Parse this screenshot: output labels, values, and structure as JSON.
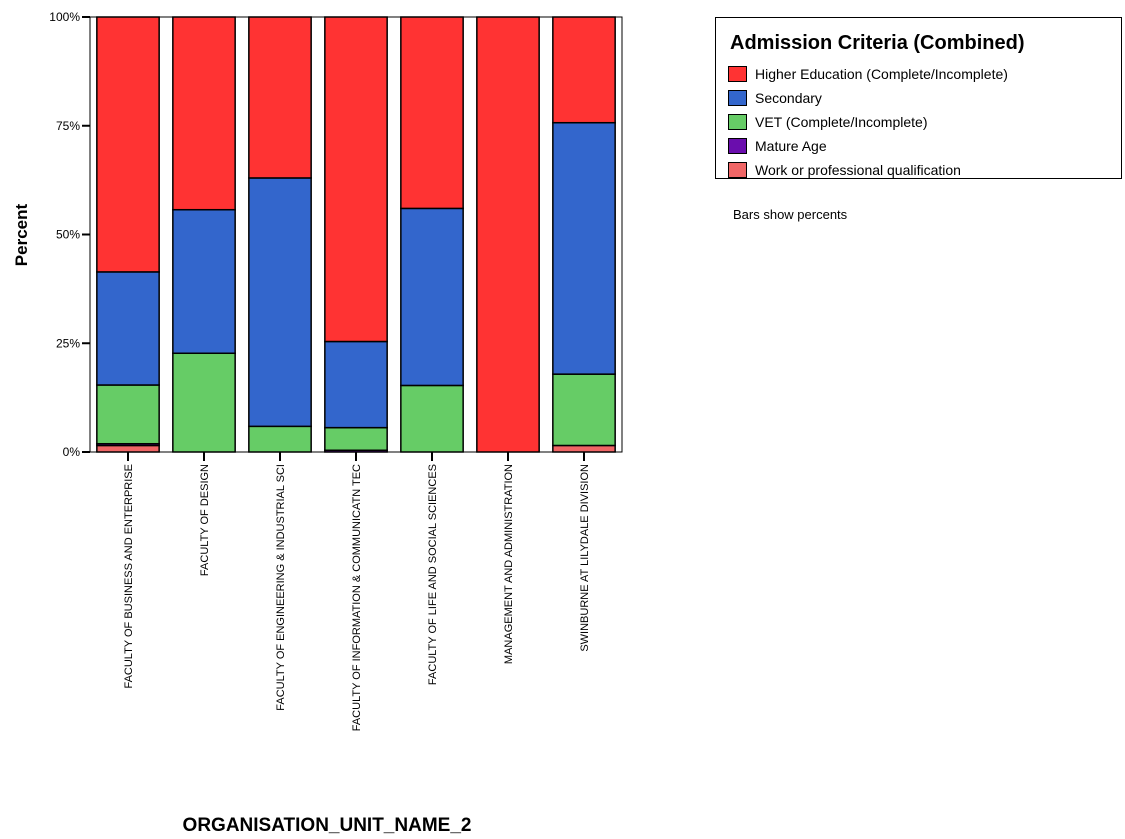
{
  "chart_data": {
    "type": "bar",
    "stacked": true,
    "percent_stacked": true,
    "xlabel": "ORGANISATION_UNIT_NAME_2",
    "ylabel": "Percent",
    "ylim": [
      0,
      100
    ],
    "yticks": [
      "0%",
      "25%",
      "50%",
      "75%",
      "100%"
    ],
    "categories": [
      "FACULTY OF BUSINESS AND ENTERPRISE",
      "FACULTY OF DESIGN",
      "FACULTY OF ENGINEERING & INDUSTRIAL SCI",
      "FACULTY OF INFORMATION & COMMUNICATN TEC",
      "FACULTY OF LIFE AND SOCIAL SCIENCES",
      "MANAGEMENT AND ADMINISTRATION",
      "SWINBURNE AT LILYDALE DIVISION"
    ],
    "series": [
      {
        "name": "Work or professional qualification",
        "color": "#f06666",
        "values": [
          1.5,
          0,
          0,
          0,
          0,
          0,
          1.5
        ]
      },
      {
        "name": "Mature Age",
        "color": "#6a0dad",
        "values": [
          0.4,
          0,
          0,
          0.4,
          0,
          0,
          0
        ]
      },
      {
        "name": "VET (Complete/Incomplete)",
        "color": "#66cc66",
        "values": [
          13.5,
          22.7,
          5.9,
          5.2,
          15.3,
          0,
          16.4
        ]
      },
      {
        "name": "Secondary",
        "color": "#3366cc",
        "values": [
          26.0,
          33.0,
          57.1,
          19.8,
          40.7,
          0,
          57.8
        ]
      },
      {
        "name": "Higher Education (Complete/Incomplete)",
        "color": "#ff3333",
        "values": [
          58.6,
          44.3,
          37.0,
          74.6,
          44.0,
          100,
          24.3
        ]
      }
    ]
  },
  "legend": {
    "title": "Admission Criteria (Combined)",
    "items": [
      {
        "label": "Higher Education (Complete/Incomplete)",
        "color": "#ff3333"
      },
      {
        "label": "Secondary",
        "color": "#3366cc"
      },
      {
        "label": "VET (Complete/Incomplete)",
        "color": "#66cc66"
      },
      {
        "label": "Mature Age",
        "color": "#6a0dad"
      },
      {
        "label": "Work or professional qualification",
        "color": "#f06666"
      }
    ]
  },
  "footnote": "Bars show percents"
}
